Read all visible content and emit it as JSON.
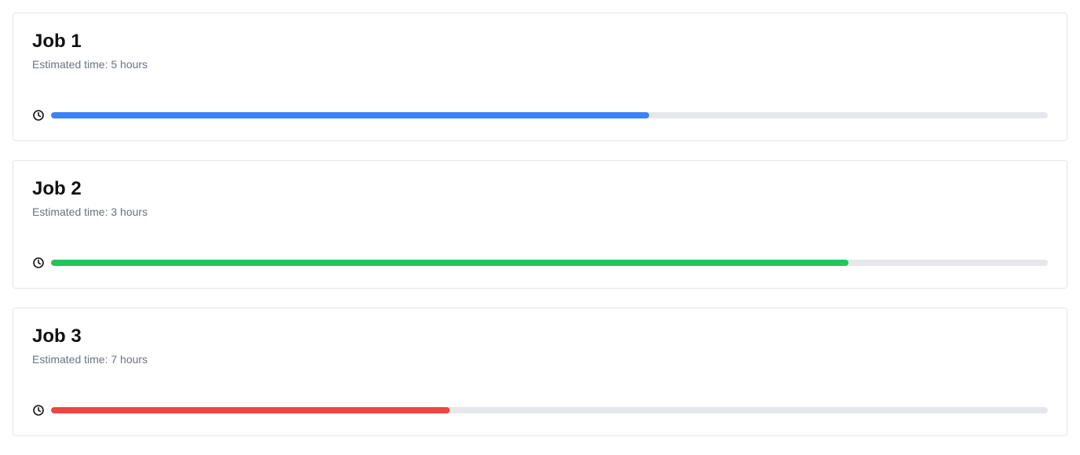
{
  "jobs": [
    {
      "title": "Job 1",
      "estimate": "Estimated time: 5 hours",
      "progress": 0.6,
      "color": "#3b82f6"
    },
    {
      "title": "Job 2",
      "estimate": "Estimated time: 3 hours",
      "progress": 0.8,
      "color": "#22c55e"
    },
    {
      "title": "Job 3",
      "estimate": "Estimated time: 7 hours",
      "progress": 0.4,
      "color": "#ef4444"
    }
  ],
  "icons": {
    "progress": "clock-icon"
  }
}
